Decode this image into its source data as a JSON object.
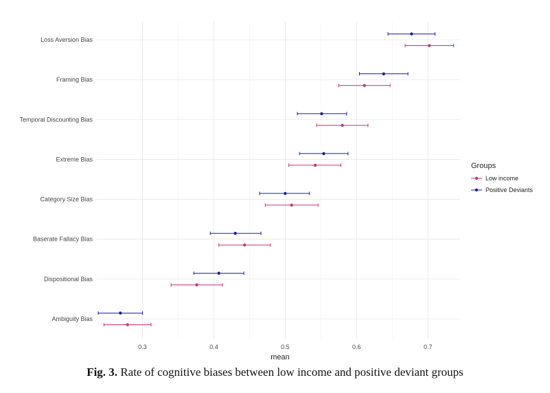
{
  "caption": {
    "label": "Fig. 3.",
    "text": " Rate of cognitive biases between low income and positive deviant groups"
  },
  "chart_data": {
    "type": "scatter",
    "subtype": "errorbar",
    "title": "",
    "xlabel": "mean",
    "ylabel": "",
    "xlim": [
      0.235,
      0.745
    ],
    "xticks": [
      0.3,
      0.4,
      0.5,
      0.6,
      0.7
    ],
    "xtick_labels": [
      "0.3",
      "0.4",
      "0.5",
      "0.6",
      "0.7"
    ],
    "grid": true,
    "legend_position": "right",
    "legend_title": "Groups",
    "categories": [
      "Loss Aversion Bias",
      "Framing Bias",
      "Temporal Discounting Bias",
      "Extreme Bias",
      "Category Size Bias",
      "Baserate Fallacy Bias",
      "Dispositional Bias",
      "Ambiguity Bias"
    ],
    "series": [
      {
        "name": "Positive Deviants",
        "color": "#1a1ab0",
        "mean": [
          0.677,
          0.638,
          0.551,
          0.554,
          0.5,
          0.43,
          0.407,
          0.269
        ],
        "lower": [
          0.644,
          0.604,
          0.517,
          0.52,
          0.464,
          0.395,
          0.372,
          0.238
        ],
        "upper": [
          0.71,
          0.672,
          0.586,
          0.588,
          0.534,
          0.466,
          0.442,
          0.3
        ]
      },
      {
        "name": "Low income",
        "color": "#c8307a",
        "mean": [
          0.702,
          0.611,
          0.58,
          0.542,
          0.509,
          0.443,
          0.376,
          0.279
        ],
        "lower": [
          0.668,
          0.575,
          0.544,
          0.505,
          0.472,
          0.407,
          0.34,
          0.246
        ],
        "upper": [
          0.736,
          0.647,
          0.616,
          0.578,
          0.546,
          0.479,
          0.412,
          0.312
        ]
      }
    ]
  }
}
